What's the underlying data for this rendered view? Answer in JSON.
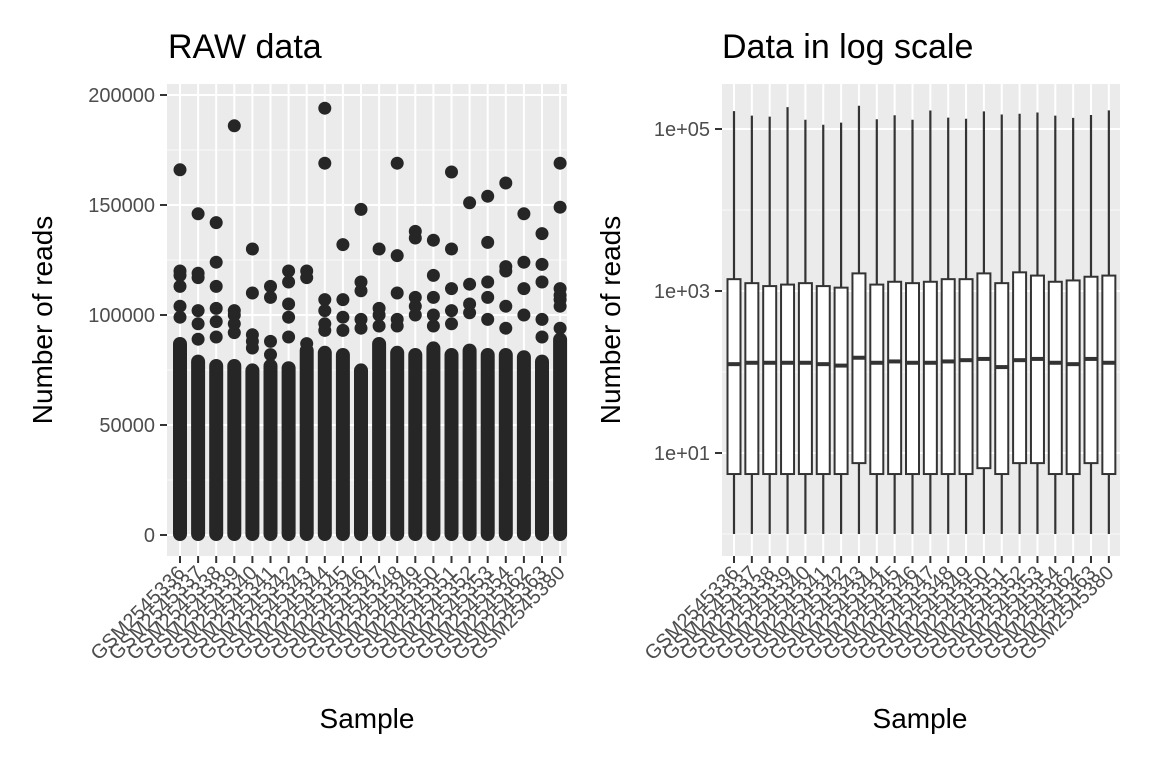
{
  "chart_data": [
    {
      "type": "boxplot",
      "title": "RAW data",
      "xlabel": "Sample",
      "ylabel": "Number of reads",
      "ylim": [
        -4000,
        200000
      ],
      "yticks": [
        0,
        50000,
        100000,
        150000,
        200000
      ],
      "ytick_labels": [
        "0",
        "50000",
        "100000",
        "150000",
        "200000"
      ],
      "categories": [
        "GSM2545336",
        "GSM2545337",
        "GSM2545338",
        "GSM2545339",
        "GSM2545340",
        "GSM2545341",
        "GSM2545342",
        "GSM2545343",
        "GSM2545344",
        "GSM2545345",
        "GSM2545346",
        "GSM2545347",
        "GSM2545348",
        "GSM2545349",
        "GSM2545350",
        "GSM2545351",
        "GSM2545352",
        "GSM2545353",
        "GSM2545354",
        "GSM2545362",
        "GSM2545363",
        "GSM2545380"
      ],
      "dense_top": [
        90000,
        82000,
        80000,
        80000,
        78000,
        80000,
        79000,
        87000,
        86000,
        85000,
        78000,
        90000,
        86000,
        85000,
        88000,
        85000,
        87000,
        85000,
        85000,
        84000,
        82000,
        92000
      ],
      "outliers": [
        [
          166000,
          120000,
          118000,
          113000,
          104000,
          99000
        ],
        [
          146000,
          119000,
          117000,
          102000,
          96000,
          89000
        ],
        [
          142000,
          124000,
          113000,
          103000,
          97000,
          90000
        ],
        [
          186000,
          102000,
          100000,
          96000,
          92000
        ],
        [
          130000,
          110000,
          91000,
          88000,
          85000
        ],
        [
          113000,
          108000,
          88000,
          82000
        ],
        [
          120000,
          115000,
          105000,
          99000,
          90000
        ],
        [
          120000,
          117000,
          87000,
          84000
        ],
        [
          194000,
          169000,
          107000,
          102000,
          96000,
          93000
        ],
        [
          132000,
          107000,
          99000,
          93000
        ],
        [
          148000,
          115000,
          111000,
          98000,
          94000
        ],
        [
          130000,
          103000,
          100000,
          95000
        ],
        [
          169000,
          127000,
          110000,
          98000,
          95000
        ],
        [
          138000,
          135000,
          108000,
          104000,
          100000
        ],
        [
          134000,
          118000,
          108000,
          100000,
          95000
        ],
        [
          165000,
          130000,
          112000,
          102000,
          96000
        ],
        [
          151000,
          114000,
          105000,
          101000
        ],
        [
          154000,
          133000,
          115000,
          108000,
          98000
        ],
        [
          160000,
          122000,
          120000,
          104000,
          94000
        ],
        [
          146000,
          124000,
          112000,
          100000
        ],
        [
          137000,
          123000,
          115000,
          98000,
          90000
        ],
        [
          149000,
          107000,
          104000,
          94000
        ]
      ],
      "last_extra_outliers": [
        169000,
        112000,
        109000
      ]
    },
    {
      "type": "boxplot",
      "title": "Data in log scale",
      "xlabel": "Sample",
      "ylabel": "Number of reads",
      "yscale": "log10",
      "ylim": [
        0.48,
        400000
      ],
      "yticks": [
        10,
        1000,
        100000
      ],
      "ytick_labels": [
        "1e+01",
        "1e+03",
        "1e+05"
      ],
      "categories": [
        "GSM2545336",
        "GSM2545337",
        "GSM2545338",
        "GSM2545339",
        "GSM2545340",
        "GSM2545341",
        "GSM2545342",
        "GSM2545343",
        "GSM2545344",
        "GSM2545345",
        "GSM2545346",
        "GSM2545347",
        "GSM2545348",
        "GSM2545349",
        "GSM2545350",
        "GSM2545351",
        "GSM2545352",
        "GSM2545353",
        "GSM2545354",
        "GSM2545362",
        "GSM2545363",
        "GSM2545380"
      ],
      "whisker_low": [
        1,
        1,
        1,
        1,
        1,
        1,
        1,
        1,
        1,
        1,
        1,
        1,
        1,
        1,
        1,
        1,
        1,
        1,
        1,
        1,
        1,
        1
      ],
      "q1": [
        5.5,
        5.5,
        5.5,
        5.5,
        5.5,
        5.5,
        5.5,
        7.5,
        5.5,
        5.5,
        5.5,
        5.5,
        5.5,
        5.5,
        6.5,
        5.5,
        7.5,
        7.5,
        5.5,
        5.5,
        7.5,
        5.5
      ],
      "median": [
        125,
        130,
        130,
        130,
        130,
        125,
        120,
        150,
        130,
        135,
        130,
        130,
        135,
        140,
        145,
        115,
        140,
        145,
        130,
        125,
        145,
        130
      ],
      "q3": [
        1400,
        1250,
        1150,
        1200,
        1250,
        1150,
        1100,
        1650,
        1200,
        1300,
        1250,
        1300,
        1400,
        1400,
        1650,
        1250,
        1700,
        1550,
        1300,
        1350,
        1500,
        1550
      ],
      "whisker_high": [
        166000,
        146000,
        142000,
        186000,
        130000,
        113000,
        120000,
        194000,
        132000,
        148000,
        130000,
        169000,
        138000,
        134000,
        165000,
        151000,
        154000,
        160000,
        146000,
        137000,
        149000,
        170000
      ]
    }
  ]
}
